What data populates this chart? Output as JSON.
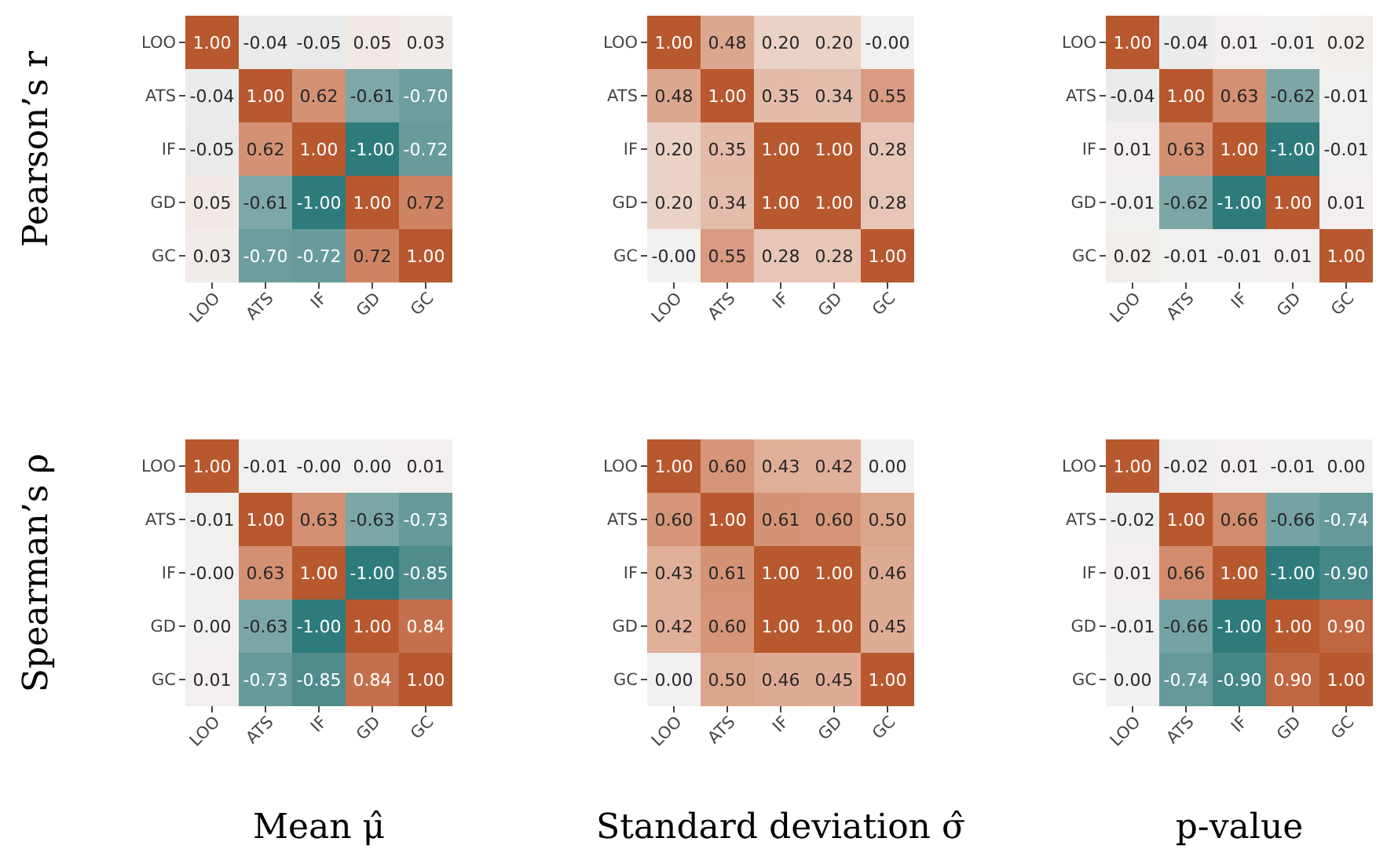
{
  "chart_data": [
    {
      "type": "heatmap",
      "ylabel": "Pearson’s r",
      "categories": [
        "LOO",
        "ATS",
        "IF",
        "GD",
        "GC"
      ],
      "y_categories": [
        "LOO",
        "ATS",
        "IF",
        "GD",
        "GC"
      ],
      "data_labels": true,
      "cells": [
        [
          1.0,
          -0.04,
          -0.05,
          0.05,
          0.03
        ],
        [
          -0.04,
          1.0,
          0.62,
          -0.61,
          -0.7
        ],
        [
          -0.05,
          0.62,
          1.0,
          -1.0,
          -0.72
        ],
        [
          0.05,
          -0.61,
          -1.0,
          1.0,
          0.72
        ],
        [
          0.03,
          -0.7,
          -0.72,
          0.72,
          1.0
        ]
      ],
      "cell_labels": [
        [
          "1.00",
          "-0.04",
          "-0.05",
          "0.05",
          "0.03"
        ],
        [
          "-0.04",
          "1.00",
          "0.62",
          "-0.61",
          "-0.70"
        ],
        [
          "-0.05",
          "0.62",
          "1.00",
          "-1.00",
          "-0.72"
        ],
        [
          "0.05",
          "-0.61",
          "-1.00",
          "1.00",
          "0.72"
        ],
        [
          "0.03",
          "-0.70",
          "-0.72",
          "0.72",
          "1.00"
        ]
      ]
    },
    {
      "type": "heatmap",
      "categories": [
        "LOO",
        "ATS",
        "IF",
        "GD",
        "GC"
      ],
      "y_categories": [
        "LOO",
        "ATS",
        "IF",
        "GD",
        "GC"
      ],
      "data_labels": true,
      "cells": [
        [
          1.0,
          0.48,
          0.2,
          0.2,
          0.0
        ],
        [
          0.48,
          1.0,
          0.35,
          0.34,
          0.55
        ],
        [
          0.2,
          0.35,
          1.0,
          1.0,
          0.28
        ],
        [
          0.2,
          0.34,
          1.0,
          1.0,
          0.28
        ],
        [
          0.0,
          0.55,
          0.28,
          0.28,
          1.0
        ]
      ],
      "cell_labels": [
        [
          "1.00",
          "0.48",
          "0.20",
          "0.20",
          "-0.00"
        ],
        [
          "0.48",
          "1.00",
          "0.35",
          "0.34",
          "0.55"
        ],
        [
          "0.20",
          "0.35",
          "1.00",
          "1.00",
          "0.28"
        ],
        [
          "0.20",
          "0.34",
          "1.00",
          "1.00",
          "0.28"
        ],
        [
          "-0.00",
          "0.55",
          "0.28",
          "0.28",
          "1.00"
        ]
      ]
    },
    {
      "type": "heatmap",
      "categories": [
        "LOO",
        "ATS",
        "IF",
        "GD",
        "GC"
      ],
      "y_categories": [
        "LOO",
        "ATS",
        "IF",
        "GD",
        "GC"
      ],
      "data_labels": true,
      "cells": [
        [
          1.0,
          -0.04,
          0.01,
          -0.01,
          0.02
        ],
        [
          -0.04,
          1.0,
          0.63,
          -0.62,
          -0.01
        ],
        [
          0.01,
          0.63,
          1.0,
          -1.0,
          -0.01
        ],
        [
          -0.01,
          -0.62,
          -1.0,
          1.0,
          0.01
        ],
        [
          0.02,
          -0.01,
          -0.01,
          0.01,
          1.0
        ]
      ],
      "cell_labels": [
        [
          "1.00",
          "-0.04",
          "0.01",
          "-0.01",
          "0.02"
        ],
        [
          "-0.04",
          "1.00",
          "0.63",
          "-0.62",
          "-0.01"
        ],
        [
          "0.01",
          "0.63",
          "1.00",
          "-1.00",
          "-0.01"
        ],
        [
          "-0.01",
          "-0.62",
          "-1.00",
          "1.00",
          "0.01"
        ],
        [
          "0.02",
          "-0.01",
          "-0.01",
          "0.01",
          "1.00"
        ]
      ]
    },
    {
      "type": "heatmap",
      "ylabel": "Spearman’s ρ",
      "xlabel": "Mean μ̂",
      "categories": [
        "LOO",
        "ATS",
        "IF",
        "GD",
        "GC"
      ],
      "y_categories": [
        "LOO",
        "ATS",
        "IF",
        "GD",
        "GC"
      ],
      "data_labels": true,
      "cells": [
        [
          1.0,
          -0.01,
          0.0,
          0.0,
          0.01
        ],
        [
          -0.01,
          1.0,
          0.63,
          -0.63,
          -0.73
        ],
        [
          0.0,
          0.63,
          1.0,
          -1.0,
          -0.85
        ],
        [
          0.0,
          -0.63,
          -1.0,
          1.0,
          0.84
        ],
        [
          0.01,
          -0.73,
          -0.85,
          0.84,
          1.0
        ]
      ],
      "cell_labels": [
        [
          "1.00",
          "-0.01",
          "-0.00",
          "0.00",
          "0.01"
        ],
        [
          "-0.01",
          "1.00",
          "0.63",
          "-0.63",
          "-0.73"
        ],
        [
          "-0.00",
          "0.63",
          "1.00",
          "-1.00",
          "-0.85"
        ],
        [
          "0.00",
          "-0.63",
          "-1.00",
          "1.00",
          "0.84"
        ],
        [
          "0.01",
          "-0.73",
          "-0.85",
          "0.84",
          "1.00"
        ]
      ]
    },
    {
      "type": "heatmap",
      "xlabel": "Standard deviation σ̂",
      "categories": [
        "LOO",
        "ATS",
        "IF",
        "GD",
        "GC"
      ],
      "y_categories": [
        "LOO",
        "ATS",
        "IF",
        "GD",
        "GC"
      ],
      "data_labels": true,
      "cells": [
        [
          1.0,
          0.6,
          0.43,
          0.42,
          0.0
        ],
        [
          0.6,
          1.0,
          0.61,
          0.6,
          0.5
        ],
        [
          0.43,
          0.61,
          1.0,
          1.0,
          0.46
        ],
        [
          0.42,
          0.6,
          1.0,
          1.0,
          0.45
        ],
        [
          0.0,
          0.5,
          0.46,
          0.45,
          1.0
        ]
      ],
      "cell_labels": [
        [
          "1.00",
          "0.60",
          "0.43",
          "0.42",
          "0.00"
        ],
        [
          "0.60",
          "1.00",
          "0.61",
          "0.60",
          "0.50"
        ],
        [
          "0.43",
          "0.61",
          "1.00",
          "1.00",
          "0.46"
        ],
        [
          "0.42",
          "0.60",
          "1.00",
          "1.00",
          "0.45"
        ],
        [
          "0.00",
          "0.50",
          "0.46",
          "0.45",
          "1.00"
        ]
      ]
    },
    {
      "type": "heatmap",
      "xlabel": "p-value",
      "categories": [
        "LOO",
        "ATS",
        "IF",
        "GD",
        "GC"
      ],
      "y_categories": [
        "LOO",
        "ATS",
        "IF",
        "GD",
        "GC"
      ],
      "data_labels": true,
      "cells": [
        [
          1.0,
          -0.02,
          0.01,
          -0.01,
          0.0
        ],
        [
          -0.02,
          1.0,
          0.66,
          -0.66,
          -0.74
        ],
        [
          0.01,
          0.66,
          1.0,
          -1.0,
          -0.9
        ],
        [
          -0.01,
          -0.66,
          -1.0,
          1.0,
          0.9
        ],
        [
          0.0,
          -0.74,
          -0.9,
          0.9,
          1.0
        ]
      ],
      "cell_labels": [
        [
          "1.00",
          "-0.02",
          "0.01",
          "-0.01",
          "0.00"
        ],
        [
          "-0.02",
          "1.00",
          "0.66",
          "-0.66",
          "-0.74"
        ],
        [
          "0.01",
          "0.66",
          "1.00",
          "-1.00",
          "-0.90"
        ],
        [
          "-0.01",
          "-0.66",
          "-1.00",
          "1.00",
          "0.90"
        ],
        [
          "0.00",
          "-0.74",
          "-0.90",
          "0.90",
          "1.00"
        ]
      ]
    }
  ]
}
